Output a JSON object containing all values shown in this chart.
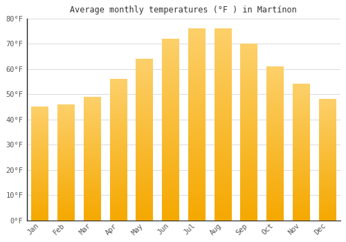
{
  "months": [
    "Jan",
    "Feb",
    "Mar",
    "Apr",
    "May",
    "Jun",
    "Jul",
    "Aug",
    "Sep",
    "Oct",
    "Nov",
    "Dec"
  ],
  "values": [
    45,
    46,
    49,
    56,
    64,
    72,
    76,
    76,
    70,
    61,
    54,
    48
  ],
  "bar_color_top": "#FDD06A",
  "bar_color_bottom": "#F5A800",
  "title": "Average monthly temperatures (°F ) in Martínon",
  "ylim": [
    0,
    80
  ],
  "yticks": [
    0,
    10,
    20,
    30,
    40,
    50,
    60,
    70,
    80
  ],
  "ytick_labels": [
    "0°F",
    "10°F",
    "20°F",
    "30°F",
    "40°F",
    "50°F",
    "60°F",
    "70°F",
    "80°F"
  ],
  "background_color": "#ffffff",
  "grid_color": "#dddddd",
  "bar_width": 0.65,
  "font_color": "#555555",
  "title_font_color": "#333333",
  "spine_color": "#222222"
}
